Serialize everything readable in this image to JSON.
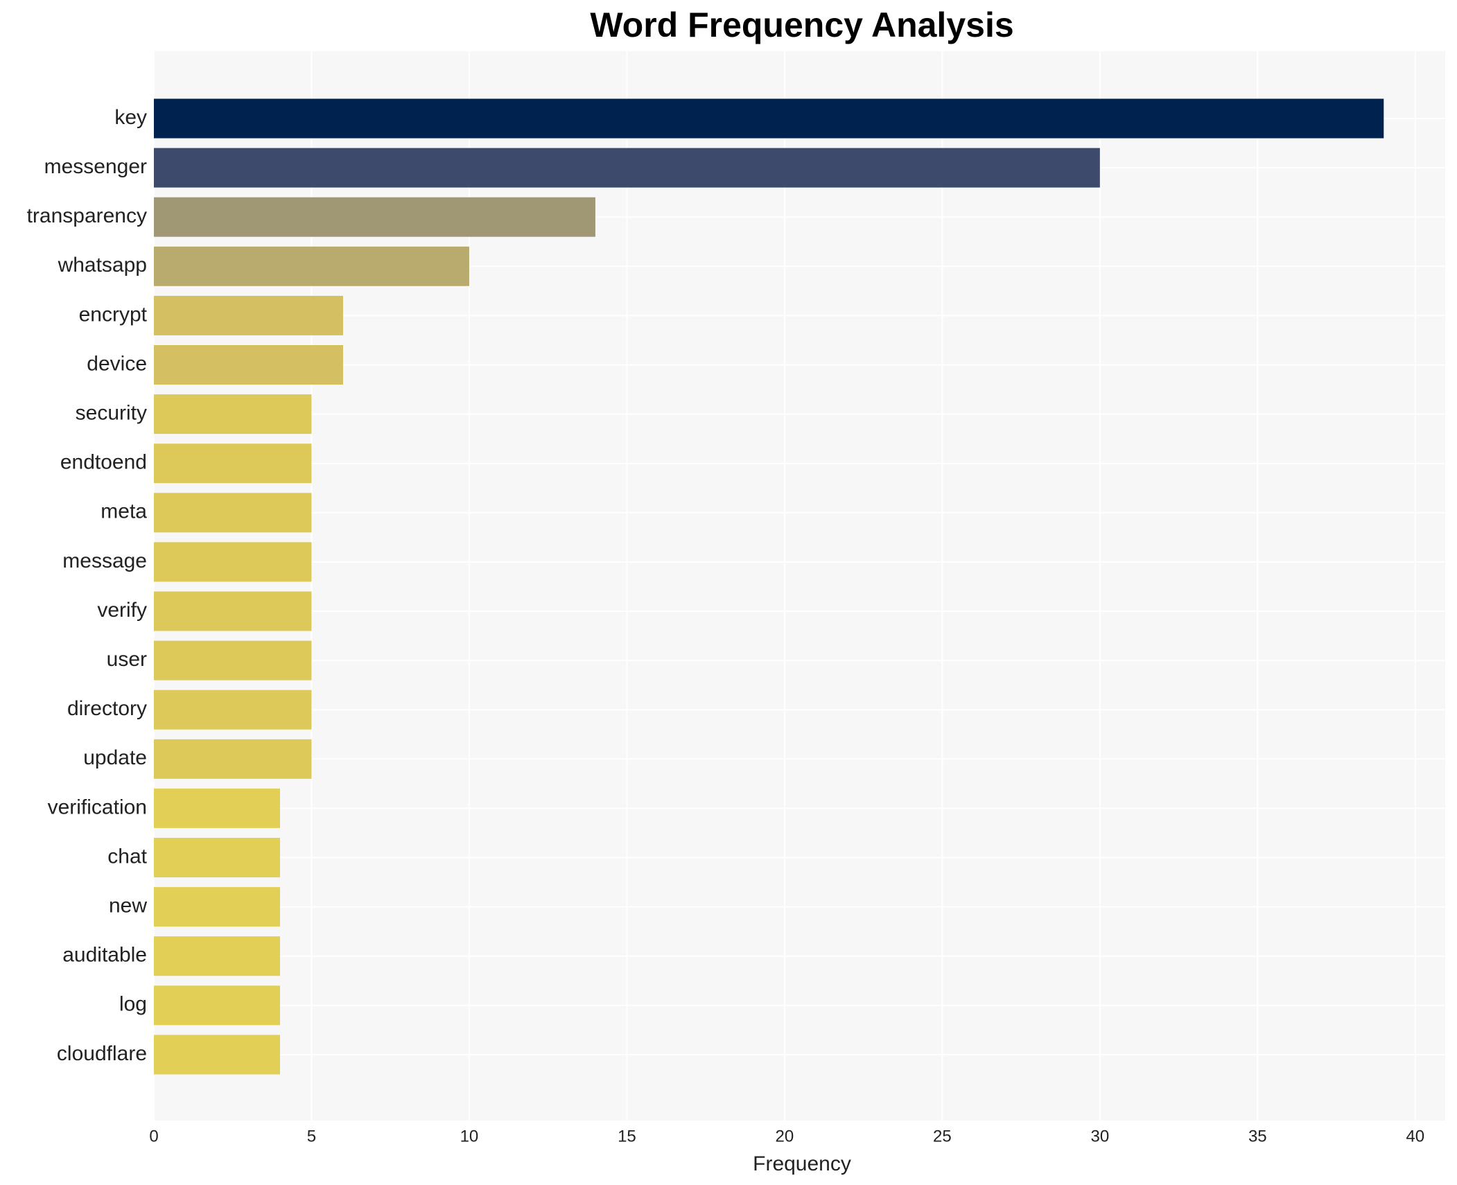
{
  "chart_data": {
    "type": "barh",
    "title": "Word Frequency Analysis",
    "x_label": "Frequency",
    "categories": [
      "key",
      "messenger",
      "transparency",
      "whatsapp",
      "encrypt",
      "device",
      "security",
      "endtoend",
      "meta",
      "message",
      "verify",
      "user",
      "directory",
      "update",
      "verification",
      "chat",
      "new",
      "auditable",
      "log",
      "cloudflare"
    ],
    "values": [
      39,
      30,
      14,
      10,
      6,
      6,
      5,
      5,
      5,
      5,
      5,
      5,
      5,
      5,
      4,
      4,
      4,
      4,
      4,
      4
    ],
    "colors": [
      "#00224e",
      "#3d4a6b",
      "#a09775",
      "#b9ab6e",
      "#d4c062",
      "#d4c062",
      "#dcc95a",
      "#dcc95a",
      "#dcc95a",
      "#dcc95a",
      "#dcc95a",
      "#dcc95a",
      "#dcc95a",
      "#dcc95a",
      "#e2cf56",
      "#e2cf56",
      "#e2cf56",
      "#e2cf56",
      "#e2cf56",
      "#e2cf56"
    ],
    "xlim": [
      0,
      40.95
    ],
    "xticks": [
      0,
      5,
      10,
      15,
      20,
      25,
      30,
      35,
      40
    ],
    "grid": true
  }
}
